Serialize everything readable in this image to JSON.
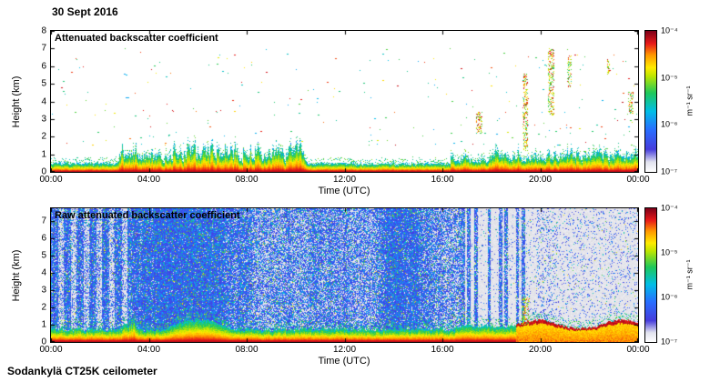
{
  "date_label": "30 Sept 2016",
  "footer": "Sodankylä CT25K ceilometer",
  "colorbar": {
    "unit": "m⁻¹ sr⁻¹",
    "ticks": [
      "10⁻⁴",
      "10⁻⁵",
      "10⁻⁶",
      "10⁻⁷"
    ],
    "scale": "log",
    "min": 1e-07,
    "max": 0.0001,
    "colormap_low_to_high": [
      "#ffffff",
      "#463cdc",
      "#286eff",
      "#00bee6",
      "#1ec85a",
      "#ffeb00",
      "#ff9600",
      "#e81919",
      "#7d0019"
    ]
  },
  "chart_data": [
    {
      "type": "heatmap",
      "title": "Attenuated backscatter coefficient",
      "xlabel": "Time (UTC)",
      "ylabel": "Height (km)",
      "x_ticks": [
        "00:00",
        "04:00",
        "08:00",
        "12:00",
        "16:00",
        "20:00",
        "00:00"
      ],
      "x_range_hours": [
        0,
        24
      ],
      "y_ticks": [
        0,
        1,
        2,
        3,
        4,
        5,
        6,
        7,
        8
      ],
      "y_range_km": [
        0,
        8
      ],
      "value_range": [
        1e-07,
        0.0001
      ],
      "background": "white",
      "features": {
        "surface_aerosol_layer": {
          "hours": [
            0,
            24
          ],
          "typical_top_km": 0.6,
          "spiky_hours": [
            3,
            10.5
          ],
          "max_top_km": 2.4
        },
        "cloud_streaks": [
          {
            "hour": 17.5,
            "km": [
              2.2,
              3.4
            ],
            "width_hours": 0.25
          },
          {
            "hour": 19.4,
            "km": [
              1.2,
              5.6
            ],
            "width_hours": 0.2
          },
          {
            "hour": 20.45,
            "km": [
              3.2,
              7.0
            ],
            "width_hours": 0.25
          },
          {
            "hour": 21.2,
            "km": [
              4.8,
              6.6
            ],
            "width_hours": 0.15
          },
          {
            "hour": 22.8,
            "km": [
              5.5,
              6.4
            ],
            "width_hours": 0.12
          },
          {
            "hour": 23.7,
            "km": [
              3.3,
              4.6
            ],
            "width_hours": 0.2
          }
        ],
        "scattered_specks_km": [
          1.5,
          7
        ]
      }
    },
    {
      "type": "heatmap",
      "title": "Raw attenuated backscatter coefficient",
      "xlabel": "Time (UTC)",
      "ylabel": "Height (km)",
      "x_ticks": [
        "00:00",
        "04:00",
        "08:00",
        "12:00",
        "16:00",
        "20:00",
        "00:00"
      ],
      "x_range_hours": [
        0,
        24
      ],
      "y_ticks": [
        0,
        1,
        2,
        3,
        4,
        5,
        6,
        7
      ],
      "y_range_km": [
        0,
        7.75
      ],
      "value_range": [
        1e-07,
        0.0001
      ],
      "background": "speckled-blue-noise-on-gray",
      "features": {
        "striped_noise_hours": [
          0,
          3.3
        ],
        "dense_noise_hours": [
          0.1,
          16.9
        ],
        "clear_gap_hours": [
          16.9,
          19.4
        ],
        "gap_dense_columns_hours": [
          17.05,
          17.35,
          17.9,
          18.35,
          18.6,
          19.05,
          19.3
        ],
        "sparse_noise_hours": [
          19.4,
          24
        ],
        "surface_aerosol_layer": {
          "hours": [
            0,
            24
          ],
          "typical_top_km": 0.7,
          "peak_hours": [
            4.5,
            7.5
          ],
          "max_top_km": 1.4
        },
        "cloud_base_line": {
          "hours": [
            19,
            24
          ],
          "km": 1.0
        },
        "cloud_streaks": [
          {
            "hour": 19.4,
            "km": [
              1.0,
              2.6
            ],
            "width_hours": 0.3
          }
        ]
      }
    }
  ]
}
